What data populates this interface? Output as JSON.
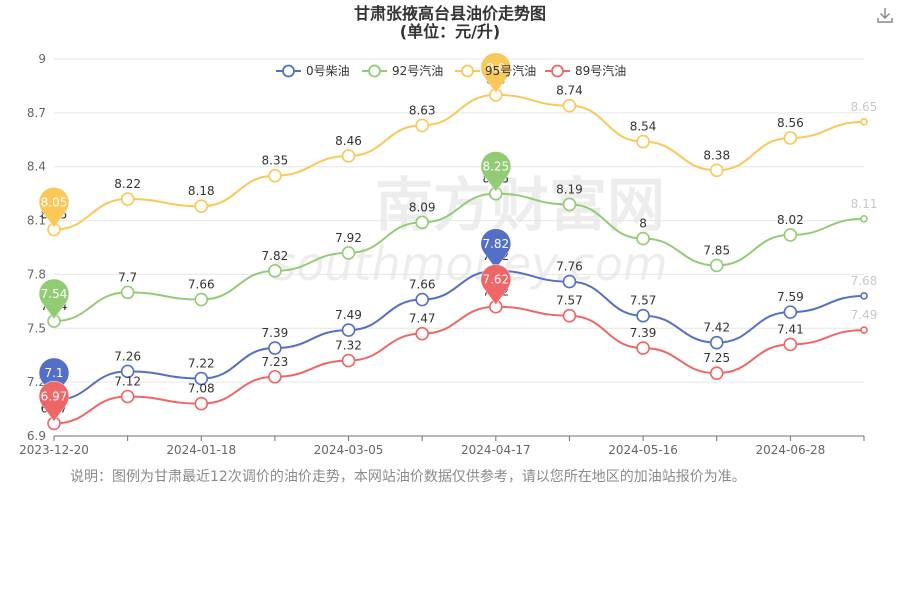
{
  "title_line1": "甘肃张掖高台县油价走势图",
  "title_line2": "(单位：元/升)",
  "note": "说明：图例为甘肃最近12次调价的油价走势，本网站油价数据仅供参考，请以您所在地区的加油站报价为准。",
  "watermark": "南方财富网 southmoney.com",
  "download_icon": "download-icon",
  "chart_data": {
    "type": "line",
    "x": [
      "2023-12-20",
      "",
      "2024-01-18",
      "",
      "2024-03-05",
      "",
      "2024-04-17",
      "",
      "2024-05-16",
      "",
      "2024-06-28",
      ""
    ],
    "xtick_labels": [
      "2023-12-20",
      "2024-01-18",
      "2024-03-05",
      "2024-04-17",
      "2024-05-16",
      "2024-06-28"
    ],
    "ylim": [
      6.9,
      9.0
    ],
    "yticks": [
      6.9,
      7.2,
      7.5,
      7.8,
      8.1,
      8.4,
      8.7,
      9
    ],
    "ytick_labels": [
      "6.9",
      "7.2",
      "7.5",
      "7.8",
      "8.1",
      "8.4",
      "8.7",
      "9"
    ],
    "grid": true,
    "legend_position": "top",
    "series": [
      {
        "name": "0号柴油",
        "color": "#5470c6",
        "values": [
          7.1,
          7.26,
          7.22,
          7.39,
          7.49,
          7.66,
          7.82,
          7.76,
          7.57,
          7.42,
          7.59,
          7.68
        ],
        "labels": [
          "7.1",
          "7.26",
          "7.22",
          "7.39",
          "7.49",
          "7.66",
          "7.82",
          "7.76",
          "7.57",
          "7.42",
          "7.59",
          "7.68"
        ]
      },
      {
        "name": "92号汽油",
        "color": "#91cc75",
        "values": [
          7.54,
          7.7,
          7.66,
          7.82,
          7.92,
          8.09,
          8.25,
          8.19,
          8.0,
          7.85,
          8.02,
          8.11
        ],
        "labels": [
          "7.54",
          "7.7",
          "7.66",
          "7.82",
          "7.92",
          "8.09",
          "8.25",
          "8.19",
          "8",
          "7.85",
          "8.02",
          "8.11"
        ]
      },
      {
        "name": "95号汽油",
        "color": "#fac858",
        "values": [
          8.05,
          8.22,
          8.18,
          8.35,
          8.46,
          8.63,
          8.8,
          8.74,
          8.54,
          8.38,
          8.56,
          8.65
        ],
        "labels": [
          "8.05",
          "8.22",
          "8.18",
          "8.35",
          "8.46",
          "8.63",
          "8.8",
          "8.74",
          "8.54",
          "8.38",
          "8.56",
          "8.65"
        ]
      },
      {
        "name": "89号汽油",
        "color": "#ee6666",
        "values": [
          6.97,
          7.12,
          7.08,
          7.23,
          7.32,
          7.47,
          7.62,
          7.57,
          7.39,
          7.25,
          7.41,
          7.49
        ],
        "labels": [
          "6.97",
          "7.12",
          "7.08",
          "7.23",
          "7.32",
          "7.47",
          "7.62",
          "7.57",
          "7.39",
          "7.25",
          "7.41",
          "7.49"
        ]
      }
    ],
    "markers": [
      {
        "series": 0,
        "index": 0,
        "label": "7.1"
      },
      {
        "series": 1,
        "index": 0,
        "label": "7.54"
      },
      {
        "series": 2,
        "index": 0,
        "label": "8.05"
      },
      {
        "series": 3,
        "index": 0,
        "label": "6.97"
      },
      {
        "series": 0,
        "index": 6,
        "label": "7.82"
      },
      {
        "series": 1,
        "index": 6,
        "label": "8.25"
      },
      {
        "series": 2,
        "index": 6,
        "label": "8.8"
      },
      {
        "series": 3,
        "index": 6,
        "label": "7.62"
      }
    ]
  }
}
